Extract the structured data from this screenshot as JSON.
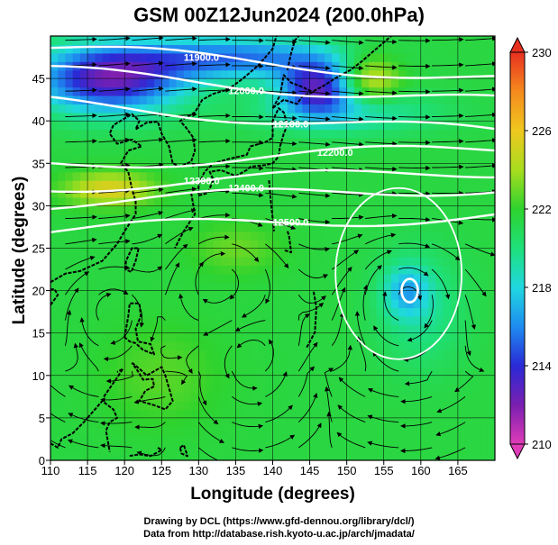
{
  "title": "GSM 00Z12Jun2024 (200.0hPa)",
  "x_axis": {
    "label": "Longitude (degrees)",
    "range": [
      110,
      170
    ],
    "ticks": [
      110,
      115,
      120,
      125,
      130,
      135,
      140,
      145,
      150,
      155,
      160,
      165
    ]
  },
  "y_axis": {
    "label": "Latitude (degrees)",
    "range": [
      0,
      50
    ],
    "ticks": [
      0,
      5,
      10,
      15,
      20,
      25,
      30,
      35,
      40,
      45
    ]
  },
  "colorbar": {
    "ticks": [
      230,
      226,
      222,
      218,
      214,
      210
    ],
    "range": [
      210,
      230
    ],
    "colors": [
      "#e03cb8",
      "#7a1fb0",
      "#2a2ad6",
      "#1e8cf0",
      "#20d8e0",
      "#1ee07a",
      "#2ed32e",
      "#a8dd1e",
      "#f0c81e",
      "#f58a1e",
      "#e83020"
    ]
  },
  "contours": [
    {
      "label": "11900.0",
      "lat": 46.8
    },
    {
      "label": "12000.0",
      "lat": 44.0
    },
    {
      "label": "12100.0",
      "lat": 40.3
    },
    {
      "label": "12200.0",
      "lat": 35.8
    },
    {
      "label": "12300.0",
      "lat": 33.2
    },
    {
      "label": "12400.0",
      "lat": 31.3
    },
    {
      "label": "12500.0",
      "lat": 28.0
    }
  ],
  "credits": [
    "Drawing by DCL (https://www.gfd-dennou.org/library/dcl/)",
    "Data from http://database.rish.kyoto-u.ac.jp/arch/jmadata/"
  ]
}
